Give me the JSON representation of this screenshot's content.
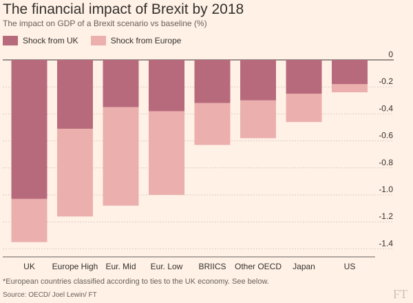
{
  "header": {
    "title": "The financial impact of Brexit by 2018",
    "subtitle": "The impact on GDP of a Brexit scenario vs baseline (%)"
  },
  "legend": {
    "items": [
      {
        "label": "Shock from UK",
        "color": "#b86a7d"
      },
      {
        "label": "Shock from Europe",
        "color": "#ebafae"
      }
    ]
  },
  "chart_data": {
    "type": "bar",
    "stacked": true,
    "title": "The financial impact of Brexit by 2018",
    "subtitle": "The impact on GDP of a Brexit scenario vs baseline (%)",
    "categories": [
      "UK",
      "Europe High",
      "Eur. Mid",
      "Eur. Low",
      "BRIICS",
      "Other OECD",
      "Japan",
      "US"
    ],
    "series": [
      {
        "name": "Shock from UK",
        "color": "#b86a7d",
        "values": [
          -1.03,
          -0.51,
          -0.35,
          -0.38,
          -0.32,
          -0.3,
          -0.25,
          -0.18
        ]
      },
      {
        "name": "Shock from Europe",
        "color": "#ebafae",
        "values": [
          -0.32,
          -0.65,
          -0.73,
          -0.62,
          -0.31,
          -0.28,
          -0.21,
          -0.06
        ]
      }
    ],
    "yticks": [
      0,
      -0.2,
      -0.4,
      -0.6,
      -0.8,
      -1.0,
      -1.2,
      -1.4
    ],
    "ytick_labels": [
      "0",
      "-0.2",
      "-0.4",
      "-0.6",
      "-0.8",
      "-1.0",
      "-1.2",
      "-1.4"
    ],
    "ylim": [
      -1.42,
      0.02
    ],
    "y_axis_side": "right",
    "grid": true,
    "legend_position": "top-left"
  },
  "footer": {
    "note": "*European countries classified according to ties to the UK economy. See below.",
    "source": "Source: OECD/ Joel Lewin/ FT",
    "logo": "FT"
  }
}
